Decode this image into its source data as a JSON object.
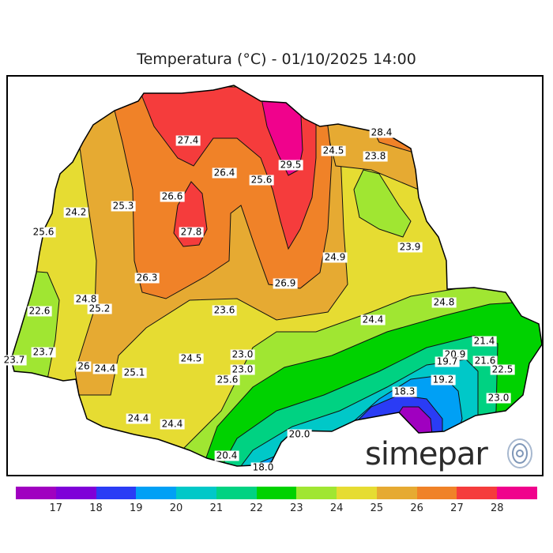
{
  "title": "Temperatura (°C) - 01/10/2025 14:00",
  "logo": {
    "text": "simepar",
    "icon": "radio-waves-icon"
  },
  "labels": [
    "27.4",
    "26.4",
    "25.6",
    "29.5",
    "24.5",
    "28.4",
    "23.8",
    "24.2",
    "25.3",
    "26.6",
    "27.8",
    "25.6",
    "24.9",
    "23.9",
    "26.3",
    "26.9",
    "24.8",
    "25.2",
    "22.6",
    "23.6",
    "24.8",
    "24.4",
    "21.4",
    "20.9",
    "19.7",
    "21.6",
    "22.5",
    "23.0",
    "23.0",
    "23.7",
    "23.7",
    "26",
    "24.4",
    "25.1",
    "24.5",
    "25.6",
    "19.2",
    "18.3",
    "23.0",
    "24.4",
    "24.4",
    "20.0",
    "20.4",
    "18.0"
  ],
  "colorbar": {
    "colors": [
      "#a000c0",
      "#7f00d8",
      "#2a3cf5",
      "#00a0f5",
      "#00c8c8",
      "#00d282",
      "#00d200",
      "#a0e632",
      "#e6dc32",
      "#e6aa32",
      "#f08228",
      "#f53c3c",
      "#f0028c"
    ],
    "ticks": [
      "17",
      "18",
      "19",
      "20",
      "21",
      "22",
      "23",
      "24",
      "25",
      "26",
      "27",
      "28"
    ]
  }
}
